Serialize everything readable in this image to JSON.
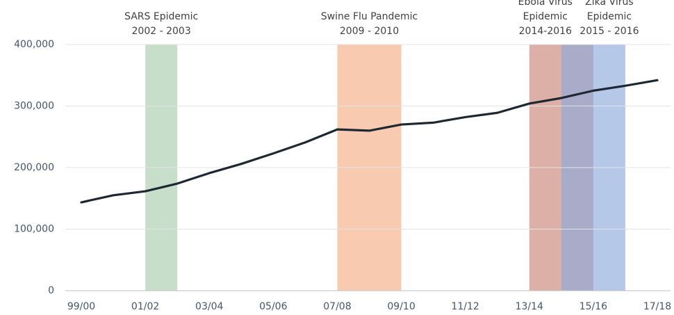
{
  "chart_data": {
    "type": "line",
    "categories": [
      "99/00",
      null,
      "01/02",
      null,
      "03/04",
      null,
      "05/06",
      null,
      "07/08",
      null,
      "09/10",
      null,
      "11/12",
      null,
      "13/14",
      null,
      "15/16",
      null,
      "17/18"
    ],
    "series": [
      {
        "color": "#1e2832",
        "values": [
          143500,
          155000,
          161500,
          174000,
          191000,
          206000,
          223000,
          241000,
          262000,
          260000,
          270000,
          273000,
          282000,
          289000,
          304000,
          313000,
          325000,
          333000,
          342000
        ]
      }
    ],
    "ylim": [
      0,
      400000
    ],
    "yticks": [
      {
        "value": 0,
        "label": "0"
      },
      {
        "value": 100000,
        "label": "100,000"
      },
      {
        "value": 200000,
        "label": "200,000"
      },
      {
        "value": 300000,
        "label": "300,000"
      },
      {
        "value": 400000,
        "label": "400,000"
      }
    ],
    "grid": true,
    "bands": [
      {
        "label": [
          "SARS Epidemic",
          "2002 - 2003"
        ],
        "start": 2,
        "end": 3,
        "color": "#a9cdaf"
      },
      {
        "label": [
          "Swine Flu Pandemic",
          "2009 - 2010"
        ],
        "start": 8,
        "end": 10,
        "color": "#f5ad85"
      },
      {
        "label": [
          "Ebola Virus",
          "Epidemic",
          "2014-2016"
        ],
        "start": 14,
        "end": 16,
        "color": "#c98676"
      },
      {
        "label": [
          "Zika Virus",
          "Epidemic",
          "2015 - 2016"
        ],
        "start": 15,
        "end": 17,
        "color": "#8eaadc"
      }
    ]
  }
}
